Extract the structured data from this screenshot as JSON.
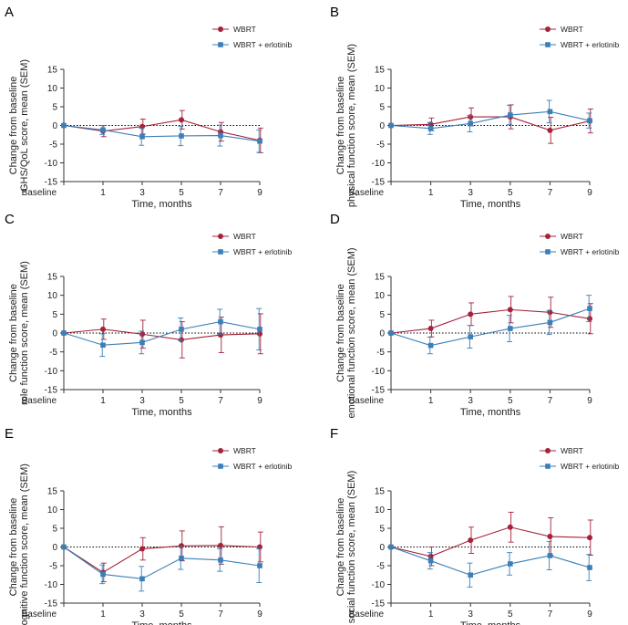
{
  "colors": {
    "wbrt": "#a4233a",
    "erlotinib": "#3a7fb8",
    "axis": "#333333"
  },
  "chart_data": [
    {
      "type": "line",
      "letter": "A",
      "ylabel": [
        "Change from baseline",
        "GHS/QoL score, mean (SEM)"
      ],
      "xlabel": "Time, months",
      "categories": [
        "Baseline",
        "1",
        "3",
        "5",
        "7",
        "9"
      ],
      "ylim": [
        -15,
        15
      ],
      "yticks": [
        15,
        10,
        5,
        0,
        -5,
        -10,
        -15
      ],
      "series": [
        {
          "name": "WBRT",
          "values": [
            0,
            -1.5,
            -0.3,
            1.5,
            -1.7,
            -4
          ],
          "errors": [
            0,
            1.5,
            2,
            2.5,
            2.5,
            3.3
          ]
        },
        {
          "name": "WBRT + erlotinib",
          "values": [
            0,
            -1.2,
            -3,
            -2.8,
            -2.7,
            -4.2
          ],
          "errors": [
            0,
            1.2,
            2.3,
            2.6,
            2.8,
            3
          ]
        }
      ]
    },
    {
      "type": "line",
      "letter": "B",
      "ylabel": [
        "Change from baseline",
        "physical function score, mean (SEM)"
      ],
      "xlabel": "Time, months",
      "categories": [
        "Baseline",
        "1",
        "3",
        "5",
        "7",
        "9"
      ],
      "ylim": [
        -15,
        15
      ],
      "yticks": [
        15,
        10,
        5,
        0,
        -5,
        -10,
        -15
      ],
      "series": [
        {
          "name": "WBRT",
          "values": [
            0,
            0.3,
            2.3,
            2.3,
            -1.3,
            1.2
          ],
          "errors": [
            0,
            1.7,
            2.4,
            3.2,
            3.5,
            3.2
          ]
        },
        {
          "name": "WBRT + erlotinib",
          "values": [
            0,
            -0.8,
            0.5,
            2.8,
            3.7,
            1.3
          ],
          "errors": [
            0,
            1.6,
            2.2,
            2.6,
            3,
            2
          ]
        }
      ]
    },
    {
      "type": "line",
      "letter": "C",
      "ylabel": [
        "Change from baseline",
        "role function score, mean (SEM)"
      ],
      "xlabel": "Time, months",
      "categories": [
        "Baseline",
        "1",
        "3",
        "5",
        "7",
        "9"
      ],
      "ylim": [
        -15,
        15
      ],
      "yticks": [
        15,
        10,
        5,
        0,
        -5,
        -10,
        -15
      ],
      "series": [
        {
          "name": "WBRT",
          "values": [
            0,
            1,
            -0.3,
            -1.8,
            -0.5,
            -0.2
          ],
          "errors": [
            0,
            2.7,
            3.7,
            4.8,
            4.7,
            5.3
          ]
        },
        {
          "name": "WBRT + erlotinib",
          "values": [
            0,
            -3.2,
            -2.5,
            1,
            3,
            1
          ],
          "errors": [
            0,
            3,
            3,
            3,
            3.3,
            5.5
          ]
        }
      ]
    },
    {
      "type": "line",
      "letter": "D",
      "ylabel": [
        "Change from baseline",
        "emotional function score, mean (SEM)"
      ],
      "xlabel": "Time, months",
      "categories": [
        "Baseline",
        "1",
        "3",
        "5",
        "7",
        "9"
      ],
      "ylim": [
        -15,
        15
      ],
      "yticks": [
        15,
        10,
        5,
        0,
        -5,
        -10,
        -15
      ],
      "series": [
        {
          "name": "WBRT",
          "values": [
            0,
            1.2,
            5,
            6.2,
            5.5,
            3.8
          ],
          "errors": [
            0,
            2.2,
            3,
            3.5,
            4,
            4
          ]
        },
        {
          "name": "WBRT + erlotinib",
          "values": [
            0,
            -3.3,
            -1,
            1.2,
            2.8,
            6.5
          ],
          "errors": [
            0,
            2.2,
            3,
            3.5,
            3.2,
            3.5
          ]
        }
      ]
    },
    {
      "type": "line",
      "letter": "E",
      "ylabel": [
        "Change from baseline",
        "cognitive function score, mean (SEM)"
      ],
      "xlabel": "Time, months",
      "categories": [
        "Baseline",
        "1",
        "3",
        "5",
        "7",
        "9"
      ],
      "ylim": [
        -15,
        15
      ],
      "yticks": [
        15,
        10,
        5,
        0,
        -5,
        -10,
        -15
      ],
      "series": [
        {
          "name": "WBRT",
          "values": [
            0,
            -6.8,
            -0.5,
            0.3,
            0.4,
            0
          ],
          "errors": [
            0,
            2.5,
            3,
            4,
            5,
            4
          ]
        },
        {
          "name": "WBRT + erlotinib",
          "values": [
            0,
            -7.3,
            -8.5,
            -3,
            -3.5,
            -5
          ],
          "errors": [
            0,
            2.5,
            3.3,
            3,
            3,
            4.5
          ]
        }
      ]
    },
    {
      "type": "line",
      "letter": "F",
      "ylabel": [
        "Change from baseline",
        "social function score, mean (SEM)"
      ],
      "xlabel": "Time, months",
      "categories": [
        "Baseline",
        "1",
        "3",
        "5",
        "7",
        "9"
      ],
      "ylim": [
        -15,
        15
      ],
      "yticks": [
        15,
        10,
        5,
        0,
        -5,
        -10,
        -15
      ],
      "series": [
        {
          "name": "WBRT",
          "values": [
            0,
            -2.5,
            1.8,
            5.3,
            2.8,
            2.5
          ],
          "errors": [
            0,
            2.5,
            3.5,
            4,
            5,
            4.7
          ]
        },
        {
          "name": "WBRT + erlotinib",
          "values": [
            0,
            -3.7,
            -7.5,
            -4.5,
            -2.3,
            -5.5
          ],
          "errors": [
            0,
            2.2,
            3.2,
            3,
            3.8,
            3.5
          ]
        }
      ]
    }
  ]
}
